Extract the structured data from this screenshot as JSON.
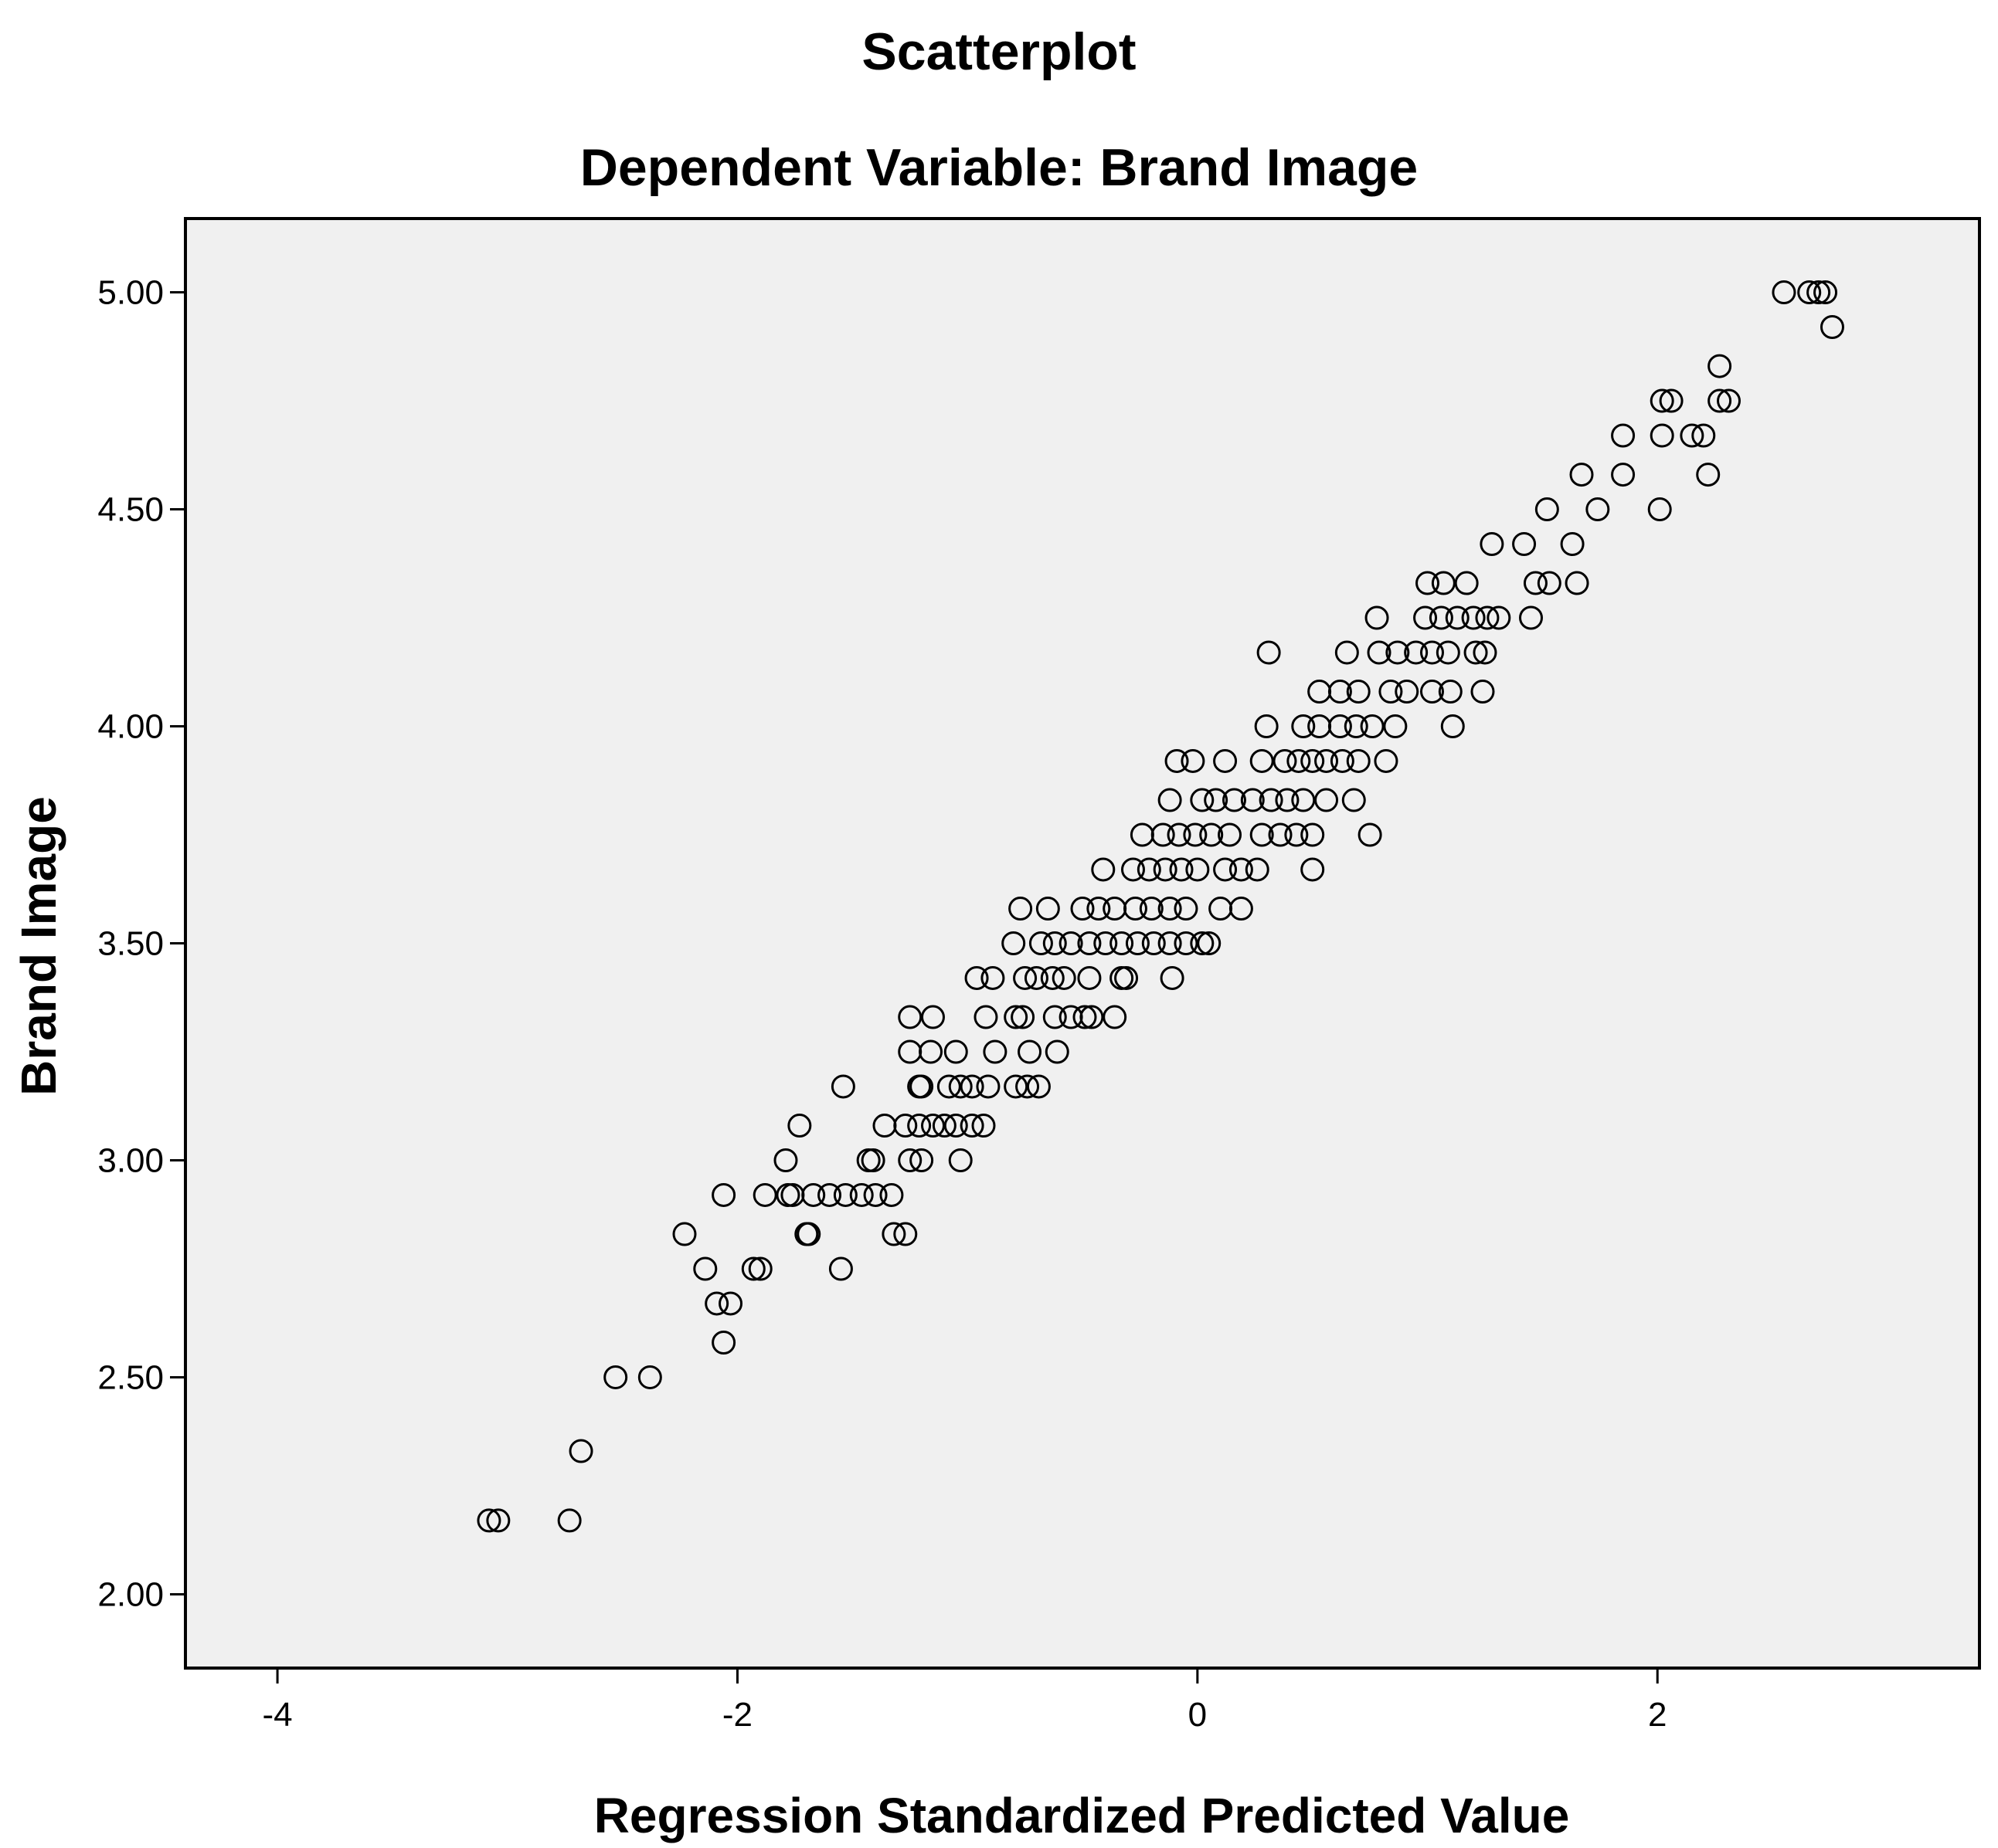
{
  "chart_data": {
    "type": "scatter",
    "title": "Scatterplot",
    "subtitle": "Dependent Variable: Brand Image",
    "xlabel": "Regression Standardized Predicted Value",
    "ylabel": "Brand Image",
    "xlim": [
      -4.4,
      3.4
    ],
    "ylim": [
      1.83,
      5.17
    ],
    "x_ticks": [
      -4,
      -2,
      0,
      2
    ],
    "x_tick_labels": [
      "-4",
      "-2",
      "0",
      "2"
    ],
    "y_ticks": [
      2.0,
      2.5,
      3.0,
      3.5,
      4.0,
      4.5,
      5.0
    ],
    "y_tick_labels": [
      "2.00",
      "2.50",
      "3.00",
      "3.50",
      "4.00",
      "4.50",
      "5.00"
    ],
    "grid": false,
    "marker": "open-circle",
    "colors": {
      "plot_background": "#f0f0f0",
      "marker_stroke": "#000000",
      "frame": "#000000"
    },
    "points": [
      [
        -3.08,
        2.17
      ],
      [
        -3.04,
        2.17
      ],
      [
        -2.73,
        2.17
      ],
      [
        -2.68,
        2.33
      ],
      [
        -2.53,
        2.5
      ],
      [
        -2.38,
        2.5
      ],
      [
        -2.06,
        2.58
      ],
      [
        -2.09,
        2.67
      ],
      [
        -2.03,
        2.67
      ],
      [
        -2.14,
        2.75
      ],
      [
        -1.93,
        2.75
      ],
      [
        -1.9,
        2.75
      ],
      [
        -1.55,
        2.75
      ],
      [
        -2.23,
        2.83
      ],
      [
        -1.7,
        2.83
      ],
      [
        -1.69,
        2.83
      ],
      [
        -1.32,
        2.83
      ],
      [
        -1.27,
        2.83
      ],
      [
        -2.06,
        2.92
      ],
      [
        -1.88,
        2.92
      ],
      [
        -1.78,
        2.92
      ],
      [
        -1.76,
        2.92
      ],
      [
        -1.67,
        2.92
      ],
      [
        -1.6,
        2.92
      ],
      [
        -1.53,
        2.92
      ],
      [
        -1.46,
        2.92
      ],
      [
        -1.4,
        2.92
      ],
      [
        -1.33,
        2.92
      ],
      [
        -1.79,
        3.0
      ],
      [
        -1.43,
        3.0
      ],
      [
        -1.41,
        3.0
      ],
      [
        -1.25,
        3.0
      ],
      [
        -1.2,
        3.0
      ],
      [
        -1.03,
        3.0
      ],
      [
        -1.73,
        3.08
      ],
      [
        -1.36,
        3.08
      ],
      [
        -1.27,
        3.08
      ],
      [
        -1.21,
        3.08
      ],
      [
        -1.15,
        3.08
      ],
      [
        -1.1,
        3.08
      ],
      [
        -1.05,
        3.08
      ],
      [
        -0.98,
        3.08
      ],
      [
        -0.93,
        3.08
      ],
      [
        -1.54,
        3.17
      ],
      [
        -1.21,
        3.17
      ],
      [
        -1.2,
        3.17
      ],
      [
        -1.08,
        3.17
      ],
      [
        -1.03,
        3.17
      ],
      [
        -0.98,
        3.17
      ],
      [
        -0.91,
        3.17
      ],
      [
        -0.79,
        3.17
      ],
      [
        -0.74,
        3.17
      ],
      [
        -0.69,
        3.17
      ],
      [
        -1.25,
        3.25
      ],
      [
        -1.16,
        3.25
      ],
      [
        -1.05,
        3.25
      ],
      [
        -0.88,
        3.25
      ],
      [
        -0.73,
        3.25
      ],
      [
        -0.61,
        3.25
      ],
      [
        -1.25,
        3.33
      ],
      [
        -1.15,
        3.33
      ],
      [
        -0.92,
        3.33
      ],
      [
        -0.79,
        3.33
      ],
      [
        -0.76,
        3.33
      ],
      [
        -0.62,
        3.33
      ],
      [
        -0.55,
        3.33
      ],
      [
        -0.49,
        3.33
      ],
      [
        -0.46,
        3.33
      ],
      [
        -0.36,
        3.33
      ],
      [
        -0.96,
        3.42
      ],
      [
        -0.89,
        3.42
      ],
      [
        -0.75,
        3.42
      ],
      [
        -0.7,
        3.42
      ],
      [
        -0.63,
        3.42
      ],
      [
        -0.58,
        3.42
      ],
      [
        -0.47,
        3.42
      ],
      [
        -0.33,
        3.42
      ],
      [
        -0.31,
        3.42
      ],
      [
        -0.11,
        3.42
      ],
      [
        -0.8,
        3.5
      ],
      [
        -0.68,
        3.5
      ],
      [
        -0.62,
        3.5
      ],
      [
        -0.55,
        3.5
      ],
      [
        -0.47,
        3.5
      ],
      [
        -0.4,
        3.5
      ],
      [
        -0.33,
        3.5
      ],
      [
        -0.26,
        3.5
      ],
      [
        -0.19,
        3.5
      ],
      [
        -0.12,
        3.5
      ],
      [
        -0.05,
        3.5
      ],
      [
        0.02,
        3.5
      ],
      [
        0.05,
        3.5
      ],
      [
        -0.77,
        3.58
      ],
      [
        -0.65,
        3.58
      ],
      [
        -0.5,
        3.58
      ],
      [
        -0.43,
        3.58
      ],
      [
        -0.36,
        3.58
      ],
      [
        -0.27,
        3.58
      ],
      [
        -0.2,
        3.58
      ],
      [
        -0.12,
        3.58
      ],
      [
        -0.05,
        3.58
      ],
      [
        0.1,
        3.58
      ],
      [
        0.19,
        3.58
      ],
      [
        -0.41,
        3.67
      ],
      [
        -0.28,
        3.67
      ],
      [
        -0.21,
        3.67
      ],
      [
        -0.14,
        3.67
      ],
      [
        -0.07,
        3.67
      ],
      [
        0.0,
        3.67
      ],
      [
        0.12,
        3.67
      ],
      [
        0.19,
        3.67
      ],
      [
        0.26,
        3.67
      ],
      [
        0.5,
        3.67
      ],
      [
        -0.24,
        3.75
      ],
      [
        -0.15,
        3.75
      ],
      [
        -0.08,
        3.75
      ],
      [
        -0.01,
        3.75
      ],
      [
        0.06,
        3.75
      ],
      [
        0.14,
        3.75
      ],
      [
        0.28,
        3.75
      ],
      [
        0.36,
        3.75
      ],
      [
        0.43,
        3.75
      ],
      [
        0.5,
        3.75
      ],
      [
        0.75,
        3.75
      ],
      [
        -0.12,
        3.83
      ],
      [
        0.02,
        3.83
      ],
      [
        0.08,
        3.83
      ],
      [
        0.16,
        3.83
      ],
      [
        0.24,
        3.83
      ],
      [
        0.32,
        3.83
      ],
      [
        0.39,
        3.83
      ],
      [
        0.46,
        3.83
      ],
      [
        0.56,
        3.83
      ],
      [
        0.68,
        3.83
      ],
      [
        -0.09,
        3.92
      ],
      [
        -0.02,
        3.92
      ],
      [
        0.12,
        3.92
      ],
      [
        0.28,
        3.92
      ],
      [
        0.38,
        3.92
      ],
      [
        0.44,
        3.92
      ],
      [
        0.5,
        3.92
      ],
      [
        0.56,
        3.92
      ],
      [
        0.63,
        3.92
      ],
      [
        0.7,
        3.92
      ],
      [
        0.82,
        3.92
      ],
      [
        0.3,
        4.0
      ],
      [
        0.46,
        4.0
      ],
      [
        0.53,
        4.0
      ],
      [
        0.62,
        4.0
      ],
      [
        0.69,
        4.0
      ],
      [
        0.76,
        4.0
      ],
      [
        0.86,
        4.0
      ],
      [
        1.11,
        4.0
      ],
      [
        0.53,
        4.08
      ],
      [
        0.62,
        4.08
      ],
      [
        0.7,
        4.08
      ],
      [
        0.84,
        4.08
      ],
      [
        0.91,
        4.08
      ],
      [
        1.02,
        4.08
      ],
      [
        1.1,
        4.08
      ],
      [
        1.24,
        4.08
      ],
      [
        0.31,
        4.17
      ],
      [
        0.65,
        4.17
      ],
      [
        0.79,
        4.17
      ],
      [
        0.87,
        4.17
      ],
      [
        0.95,
        4.17
      ],
      [
        1.02,
        4.17
      ],
      [
        1.09,
        4.17
      ],
      [
        1.21,
        4.17
      ],
      [
        1.25,
        4.17
      ],
      [
        0.78,
        4.25
      ],
      [
        0.99,
        4.25
      ],
      [
        1.06,
        4.25
      ],
      [
        1.13,
        4.25
      ],
      [
        1.2,
        4.25
      ],
      [
        1.26,
        4.25
      ],
      [
        1.31,
        4.25
      ],
      [
        1.45,
        4.25
      ],
      [
        1.0,
        4.33
      ],
      [
        1.07,
        4.33
      ],
      [
        1.17,
        4.33
      ],
      [
        1.47,
        4.33
      ],
      [
        1.53,
        4.33
      ],
      [
        1.65,
        4.33
      ],
      [
        1.28,
        4.42
      ],
      [
        1.42,
        4.42
      ],
      [
        1.63,
        4.42
      ],
      [
        1.52,
        4.5
      ],
      [
        1.74,
        4.5
      ],
      [
        2.01,
        4.5
      ],
      [
        1.67,
        4.58
      ],
      [
        1.85,
        4.58
      ],
      [
        2.22,
        4.58
      ],
      [
        1.85,
        4.67
      ],
      [
        2.02,
        4.67
      ],
      [
        2.15,
        4.67
      ],
      [
        2.2,
        4.67
      ],
      [
        2.02,
        4.75
      ],
      [
        2.06,
        4.75
      ],
      [
        2.27,
        4.75
      ],
      [
        2.31,
        4.75
      ],
      [
        2.27,
        4.83
      ],
      [
        2.76,
        4.92
      ],
      [
        2.55,
        5.0
      ],
      [
        2.66,
        5.0
      ],
      [
        2.7,
        5.0
      ],
      [
        2.73,
        5.0
      ]
    ]
  }
}
